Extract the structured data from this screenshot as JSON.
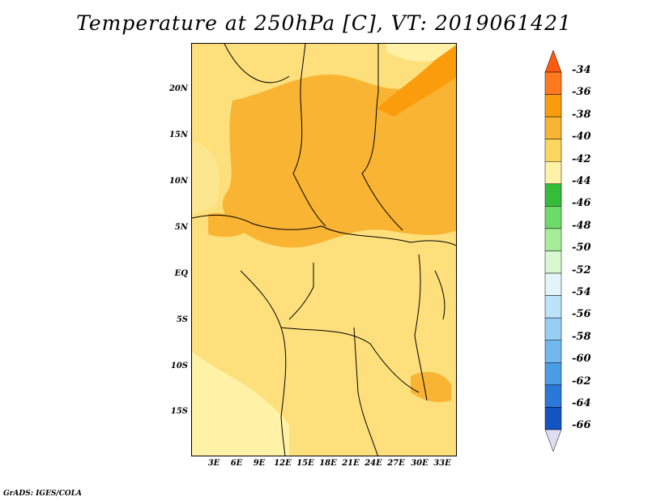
{
  "title": "Temperature at 250hPa [C], VT: 2019061421",
  "credit": "GrADS: IGES/COLA",
  "lat_labels": [
    "20N",
    "15N",
    "10N",
    "5N",
    "EQ",
    "5S",
    "10S",
    "15S"
  ],
  "lon_labels": [
    "3E",
    "6E",
    "9E",
    "12E",
    "15E",
    "18E",
    "21E",
    "24E",
    "27E",
    "30E",
    "33E"
  ],
  "colorbar": {
    "labels": [
      "-34",
      "-36",
      "-38",
      "-40",
      "-42",
      "-44",
      "-46",
      "-48",
      "-50",
      "-52",
      "-54",
      "-56",
      "-58",
      "-60",
      "-62",
      "-64",
      "-66"
    ],
    "colors": [
      "#ff7a1f",
      "#fa9c0c",
      "#f8b432",
      "#fcd65e",
      "#fff2a6",
      "#35bd3a",
      "#6ddb68",
      "#a6ed9a",
      "#d8f8d0",
      "#e4f4fb",
      "#bde3f8",
      "#97cff4",
      "#71b8ef",
      "#4a9ce6",
      "#2a79d8",
      "#1454c2",
      "#0a2a8a",
      "#10106a",
      "#ddddf5"
    ]
  },
  "colors": {
    "background": "#ffffff",
    "base_field": "#fde07c",
    "light_field": "#fff2a6",
    "warm_field": "#f8b432",
    "warmer_field": "#fa9c0c",
    "boundary": "#000000"
  }
}
